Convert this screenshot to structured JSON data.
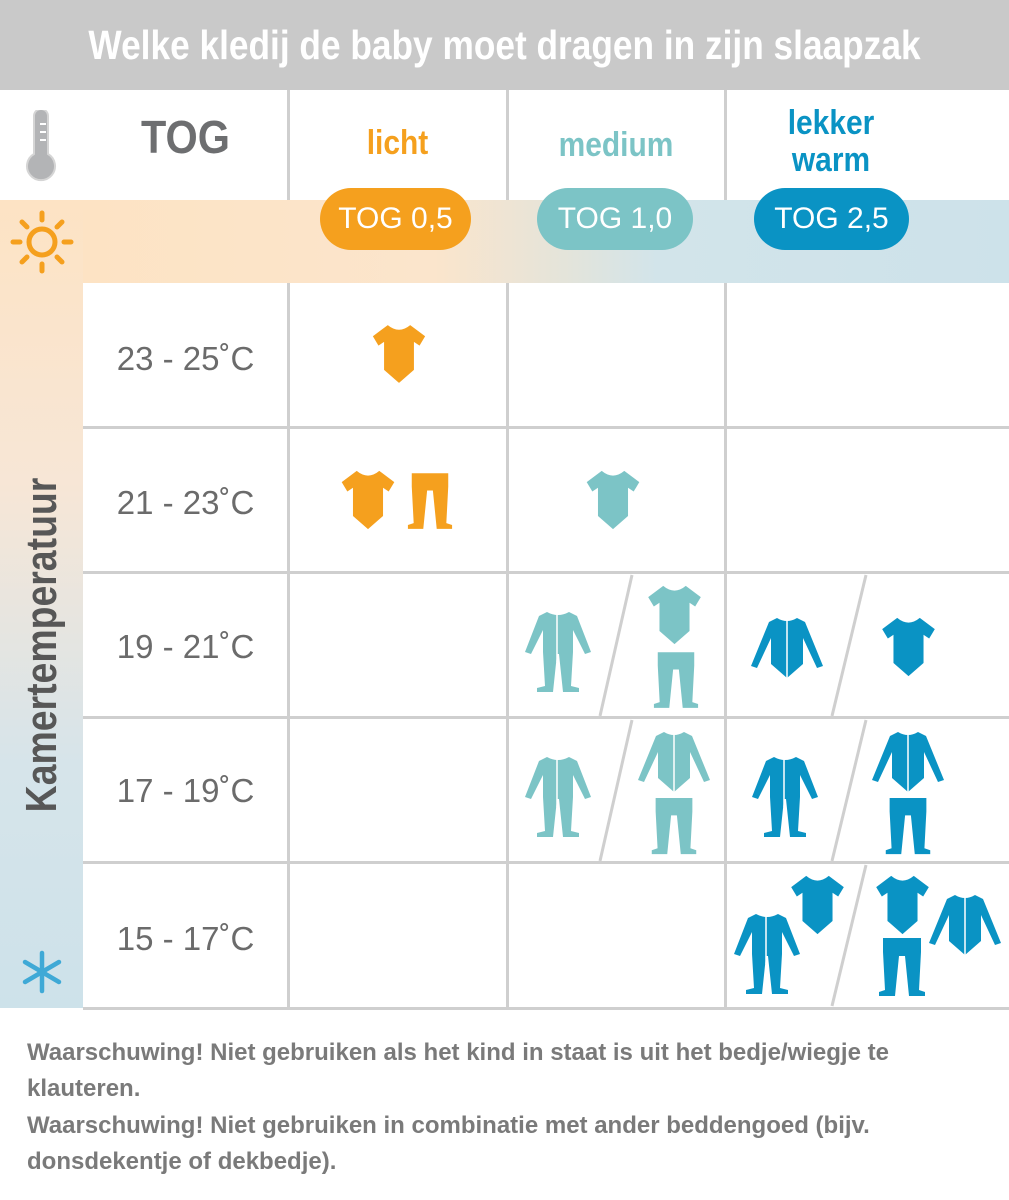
{
  "title": "Welke kledij de baby moet dragen in zijn slaapzak",
  "header": {
    "tog_label": "TOG",
    "categories": [
      {
        "label": "licht",
        "pill": "TOG 0,5",
        "color": "#f5a01e"
      },
      {
        "label_line1": "lekker",
        "label_line2": "warm",
        "pill": "TOG 2,5",
        "color": "#0a93c4"
      },
      {
        "label": "medium",
        "pill": "TOG 1,0",
        "color": "#7cc4c6"
      }
    ]
  },
  "side_label": "Kamertemperatuur",
  "icons": {
    "top": "thermometer-icon",
    "warm": "sun-icon",
    "cold": "snowflake-icon"
  },
  "rows": [
    {
      "range": "23 - 25˚C",
      "licht": [
        "bodysuit-short-sleeve"
      ],
      "medium": [],
      "lekker_warm": []
    },
    {
      "range": "21 - 23˚C",
      "licht": [
        "bodysuit-short-sleeve",
        "pants"
      ],
      "medium": [
        "bodysuit-short-sleeve"
      ],
      "lekker_warm": []
    },
    {
      "range": "19 - 21˚C",
      "licht": [],
      "medium": [
        "footed-onesie",
        "or",
        "bodysuit-short-sleeve + pants"
      ],
      "lekker_warm": [
        "bodysuit-long-sleeve",
        "or",
        "bodysuit-short-sleeve"
      ]
    },
    {
      "range": "17 - 19˚C",
      "licht": [],
      "medium": [
        "footed-onesie",
        "or",
        "bodysuit-long-sleeve + pants"
      ],
      "lekker_warm": [
        "footed-onesie",
        "or",
        "bodysuit-long-sleeve + pants"
      ]
    },
    {
      "range": "15 - 17˚C",
      "licht": [],
      "medium": [],
      "lekker_warm": [
        "footed-onesie + bodysuit-short-sleeve",
        "or",
        "bodysuit-short-sleeve + pants + bodysuit-long-sleeve"
      ]
    }
  ],
  "warnings": [
    "Waarschuwing! Niet gebruiken als het kind in staat is uit het bedje/wiegje te klauteren.",
    "Waarschuwing! Niet gebruiken in combinatie met ander beddengoed (bijv. donsdekentje of dekbedje)."
  ]
}
